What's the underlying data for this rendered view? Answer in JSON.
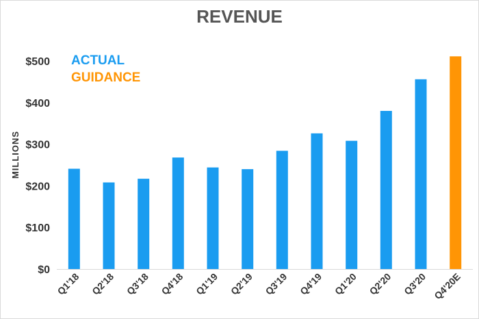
{
  "chart_data": {
    "type": "bar",
    "title": "REVENUE",
    "ylabel": "MILLIONS",
    "xlabel": "",
    "categories": [
      "Q1'18",
      "Q2'18",
      "Q3'18",
      "Q4'18",
      "Q1'19",
      "Q2'19",
      "Q3'19",
      "Q4'19",
      "Q1'20",
      "Q2'20",
      "Q3'20",
      "Q4'20E"
    ],
    "values": [
      241,
      208,
      217,
      268,
      244,
      240,
      284,
      326,
      308,
      380,
      456,
      511
    ],
    "bar_kind": [
      "actual",
      "actual",
      "actual",
      "actual",
      "actual",
      "actual",
      "actual",
      "actual",
      "actual",
      "actual",
      "actual",
      "guidance"
    ],
    "legend": [
      {
        "key": "actual",
        "label": "ACTUAL",
        "color": "#1a9cf0"
      },
      {
        "key": "guidance",
        "label": "GUIDANCE",
        "color": "#ff9505"
      }
    ],
    "yticks": [
      0,
      100,
      200,
      300,
      400,
      500
    ],
    "ytick_labels": [
      "$0",
      "$100",
      "$200",
      "$300",
      "$400",
      "$500"
    ],
    "ylim": [
      0,
      520
    ],
    "grid": false,
    "legend_position": "top-left"
  }
}
